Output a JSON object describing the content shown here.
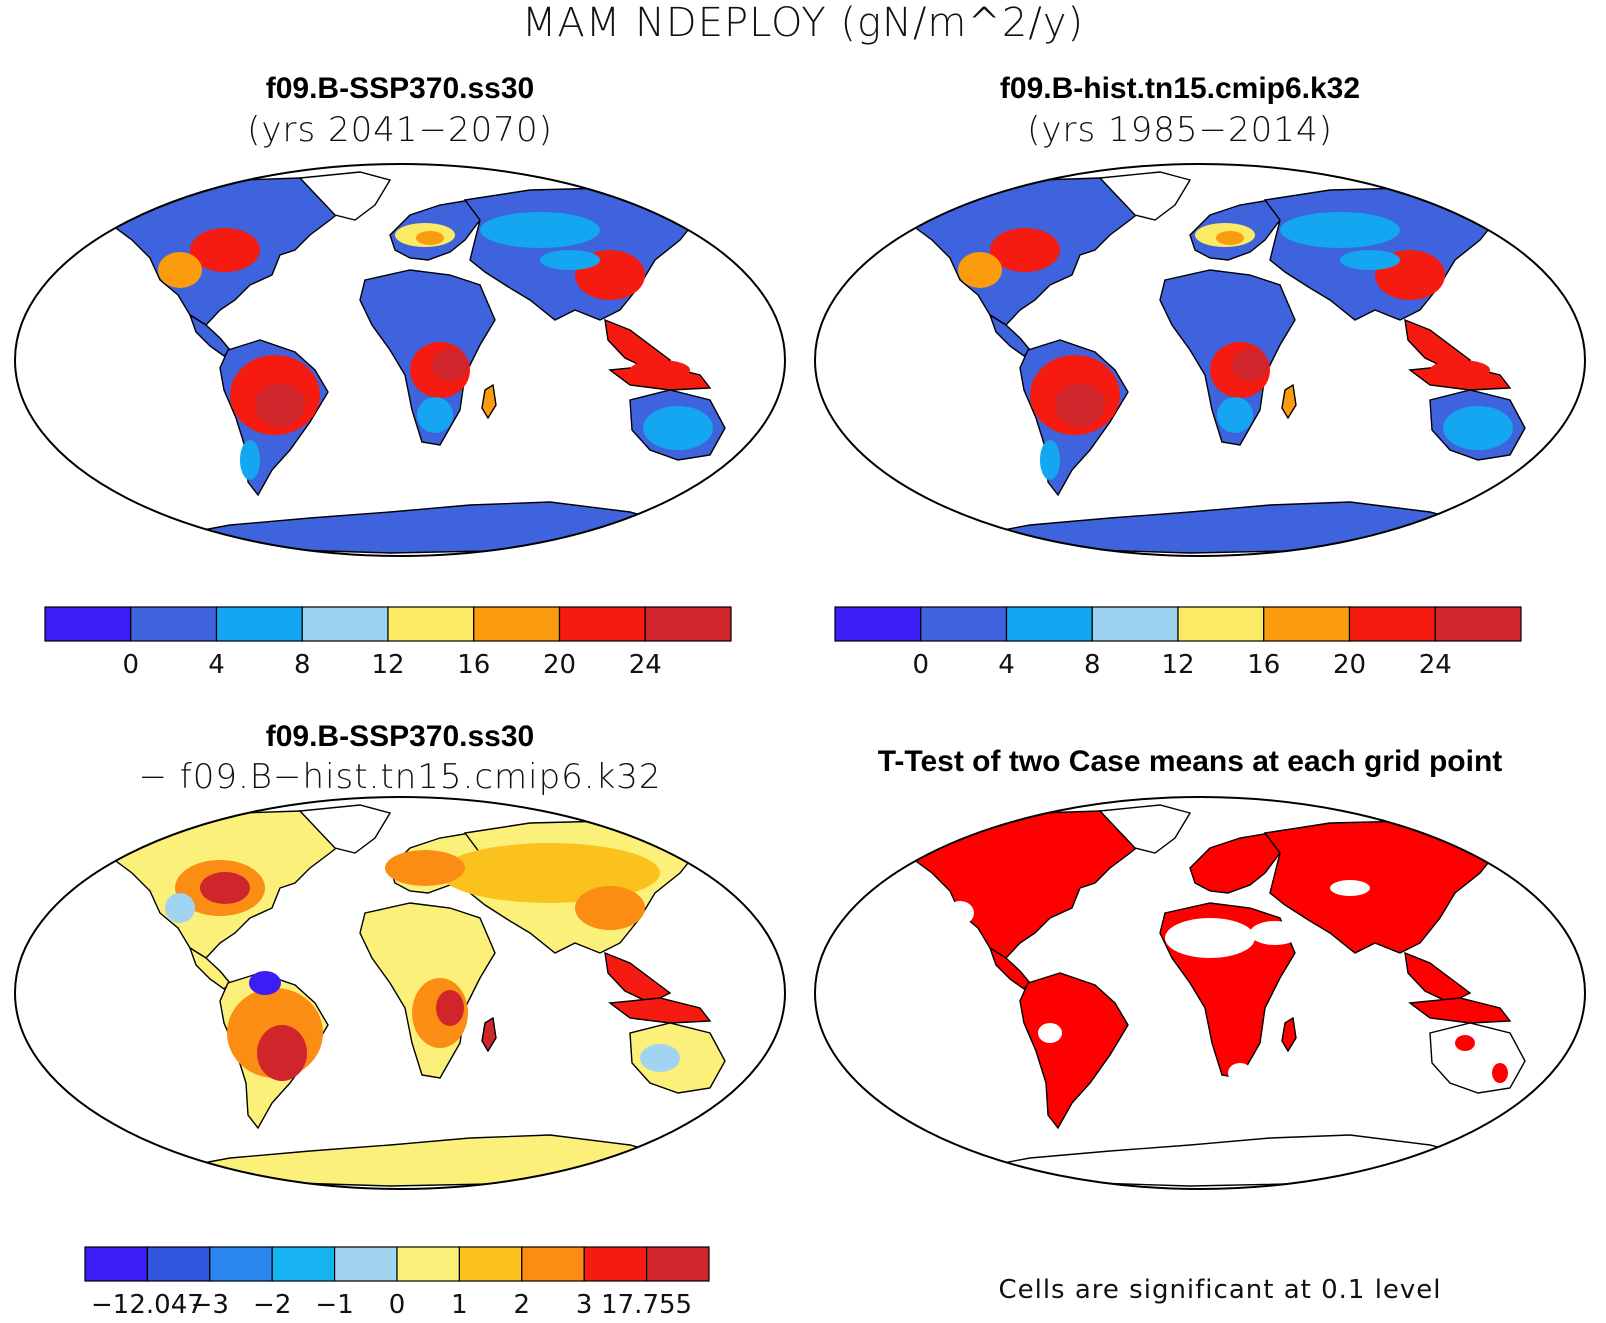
{
  "main_title": "MAM NDEPLOY (gN/m^2/y)",
  "panels": {
    "top_left": {
      "title": "f09.B-SSP370.ss30",
      "subtitle": "(yrs 2041−2070)"
    },
    "top_right": {
      "title": "f09.B-hist.tn15.cmip6.k32",
      "subtitle": "(yrs 1985−2014)"
    },
    "bottom_left": {
      "title": "f09.B-SSP370.ss30",
      "subtitle": "− f09.B−hist.tn15.cmip6.k32"
    },
    "bottom_right": {
      "title": "T-Test of two Case means at each grid point",
      "note": "Cells are significant at 0.1 level"
    }
  },
  "colorbar_abs": {
    "colors": [
      "#3b1ef5",
      "#3f63dd",
      "#14a6f0",
      "#9dd1f0",
      "#fbeb64",
      "#fb9c0e",
      "#f61b10",
      "#d0252b"
    ],
    "labels": [
      "0",
      "4",
      "8",
      "12",
      "16",
      "20",
      "24"
    ]
  },
  "colorbar_diff": {
    "colors": [
      "#3b1ef5",
      "#2f55de",
      "#2b86ef",
      "#17b3f0",
      "#a0d4f0",
      "#fbf07a",
      "#fbc21e",
      "#fb8d14",
      "#f61b10",
      "#d0252b"
    ],
    "labels": [
      "−12.047",
      "−3",
      "−2",
      "−1",
      "0",
      "1",
      "2",
      "3",
      "17.755"
    ]
  },
  "map_colors": {
    "ocean": "#ffffff",
    "sig": "#ff0000",
    "abs_low": "#3f63dd",
    "abs_mid": "#14a6f0",
    "abs_light": "#9dd1f0",
    "abs_yellow": "#fbeb64",
    "abs_orange": "#fb9c0e",
    "abs_red": "#f61b10",
    "abs_dark": "#d0252b",
    "diff_yellow": "#fbf07a",
    "diff_light": "#a0d4f0",
    "diff_orange": "#fbc21e",
    "diff_dorange": "#fb8d14",
    "diff_red": "#f61b10",
    "diff_dark": "#d0252b",
    "diff_blue": "#3b1ef5"
  }
}
